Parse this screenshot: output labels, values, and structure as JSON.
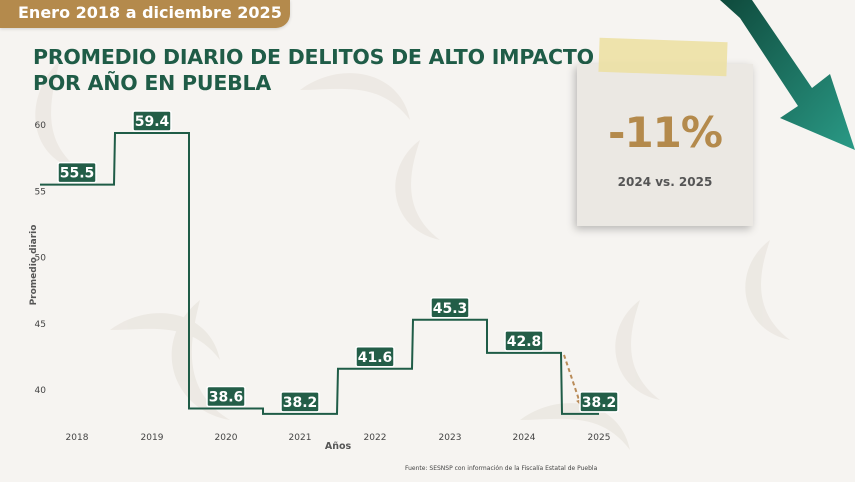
{
  "header": {
    "period": "Enero 2018 a diciembre 2025",
    "title_line1": "PROMEDIO DIARIO DE DELITOS DE ALTO IMPACTO",
    "title_line2": "POR AÑO EN PUEBLA"
  },
  "callout": {
    "percent": "-11%",
    "comparison": "2024 vs. 2025"
  },
  "source": "Fuente: SESNSP con información de la Fiscalía Estatal de Puebla",
  "colors": {
    "primary": "#1f5c47",
    "accent": "#b48a4c",
    "label_bg": "#235e48",
    "dashed_arrow": "#b98b58"
  },
  "chart_data": {
    "type": "line",
    "step": true,
    "categories": [
      "2018",
      "2019",
      "2020",
      "2021",
      "2022",
      "2023",
      "2024",
      "2025"
    ],
    "values": [
      55.5,
      59.4,
      38.6,
      38.2,
      41.6,
      45.3,
      42.8,
      38.2
    ],
    "labels": [
      "55.5",
      "59.4",
      "38.6",
      "38.2",
      "41.6",
      "45.3",
      "42.8",
      "38.2"
    ],
    "xlabel": "Años",
    "ylabel": "Promedio diario",
    "ylim": [
      38,
      61
    ],
    "yticks": [
      "40",
      "45",
      "50",
      "55",
      "60"
    ],
    "grid": false,
    "legend": "none"
  }
}
